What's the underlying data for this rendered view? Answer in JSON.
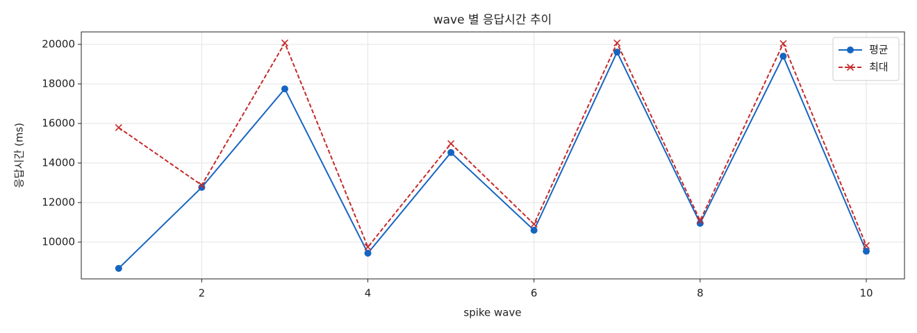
{
  "chart_data": {
    "type": "line",
    "title": "wave 별 응답시간 추이",
    "xlabel": "spike wave",
    "ylabel": "응답시간 (ms)",
    "x": [
      1,
      2,
      3,
      4,
      5,
      6,
      7,
      8,
      9,
      10
    ],
    "series": [
      {
        "name": "평균",
        "color": "#1565c0",
        "linestyle": "solid",
        "marker": "o",
        "values": [
          8670,
          12770,
          17750,
          9440,
          14530,
          10600,
          19610,
          10950,
          19400,
          9540
        ]
      },
      {
        "name": "최대",
        "color": "#c62828",
        "linestyle": "dashed",
        "marker": "x",
        "values": [
          15790,
          12880,
          20070,
          9750,
          14980,
          10910,
          20070,
          11090,
          20040,
          9820
        ]
      }
    ],
    "xlim": [
      0.55,
      10.46
    ],
    "xticks": [
      2,
      4,
      6,
      8,
      10
    ],
    "ylim": [
      8140,
      20630
    ],
    "yticks": [
      10000,
      12000,
      14000,
      16000,
      18000,
      20000
    ],
    "grid": true,
    "legend": "upper-right"
  }
}
